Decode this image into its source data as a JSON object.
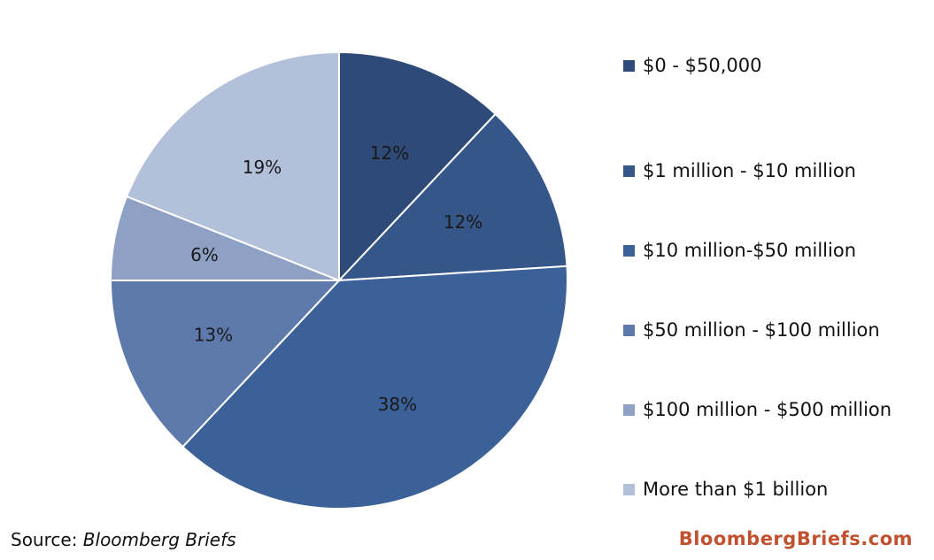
{
  "chart_data": {
    "type": "pie",
    "categories": [
      "$0 - $50,000",
      "$1 million - $10 million",
      "$10 million-$50 million",
      "$50 million - $100 million",
      "$100 million - $500 million",
      "More than $1 billion"
    ],
    "values": [
      12,
      12,
      38,
      13,
      6,
      19
    ],
    "data_labels": [
      "12%",
      "12%",
      "38%",
      "13%",
      "6%",
      "19%"
    ],
    "colors": [
      "#2e4a78",
      "#345688",
      "#3c6098",
      "#5e7aac",
      "#8ea0c4",
      "#b2c0da"
    ],
    "legend_position": "right",
    "start_angle": "12 o'clock, clockwise"
  },
  "source": {
    "prefix": "Source: ",
    "name": "Bloomberg Briefs"
  },
  "brand": "BloombergBriefs.com"
}
